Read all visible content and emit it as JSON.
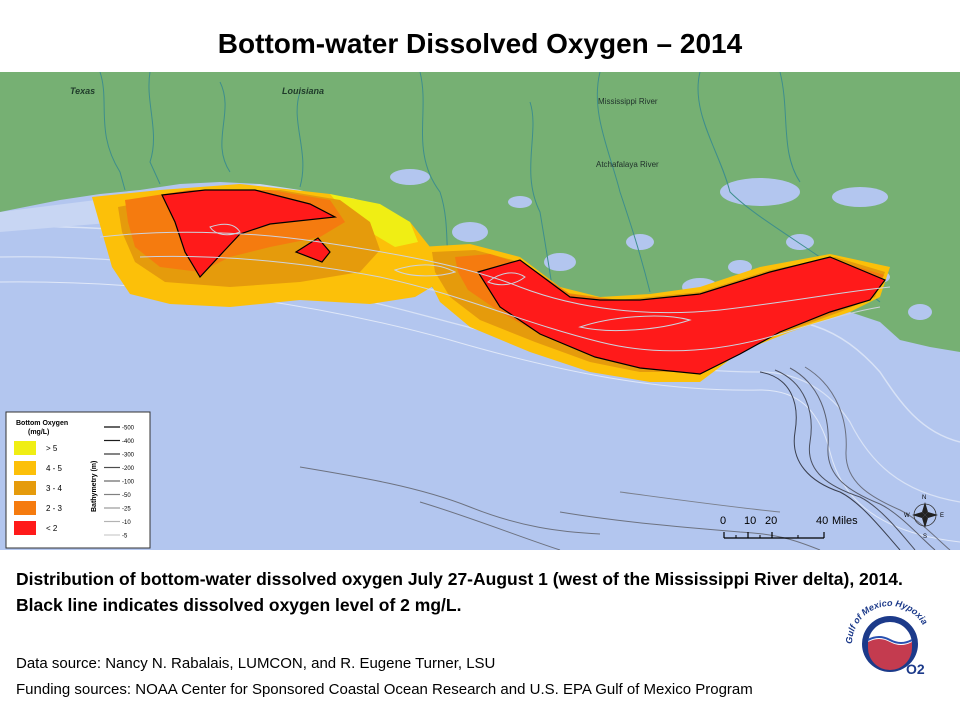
{
  "title": "Bottom-water Dissolved Oxygen – 2014",
  "map": {
    "labels": {
      "texas": "Texas",
      "louisiana": "Louisiana",
      "mississippi_river": "Mississippi River",
      "atchafalaya_river": "Atchafalaya River"
    },
    "colors": {
      "land": "#76b073",
      "water": "#b3c6ef",
      "gt5": "#f0ee14",
      "c4_5": "#fcc009",
      "c3_4": "#efa20a",
      "c2_3": "#f57b0f",
      "lt2": "#ff1a1a"
    }
  },
  "legend": {
    "oxygen_title": "Bottom Oxygen",
    "oxygen_unit": "(mg/L)",
    "oxygen_items": [
      {
        "label": "> 5",
        "color": "#f0ee14"
      },
      {
        "label": "4 - 5",
        "color": "#fcc009"
      },
      {
        "label": "3 - 4",
        "color": "#e59b0c"
      },
      {
        "label": "2 - 3",
        "color": "#f57b0f"
      },
      {
        "label": "< 2",
        "color": "#ff1a1a"
      }
    ],
    "bathymetry_title": "Bathymetry (m)",
    "bathymetry_items": [
      "-500",
      "-400",
      "-300",
      "-200",
      "-100",
      "-50",
      "-25",
      "-10",
      "-5"
    ]
  },
  "scale_bar": {
    "ticks": [
      "0",
      "10",
      "20",
      "40"
    ],
    "unit": "Miles"
  },
  "compass": {
    "n": "N",
    "s": "S",
    "e": "E",
    "w": "W"
  },
  "caption": {
    "main": "Distribution of bottom-water dissolved oxygen July 27-August 1 (west of the Mississippi River delta), 2014. Black line indicates dissolved oxygen level of 2 mg/L.",
    "data_source": "Data source: Nancy N. Rabalais, LUMCON, and R. Eugene Turner, LSU",
    "funding": "Funding sources: NOAA Center for Sponsored Coastal Ocean Research and U.S. EPA Gulf of Mexico Program"
  },
  "logo": {
    "text": "Gulf of Mexico Hypoxia",
    "mark": "O2"
  }
}
